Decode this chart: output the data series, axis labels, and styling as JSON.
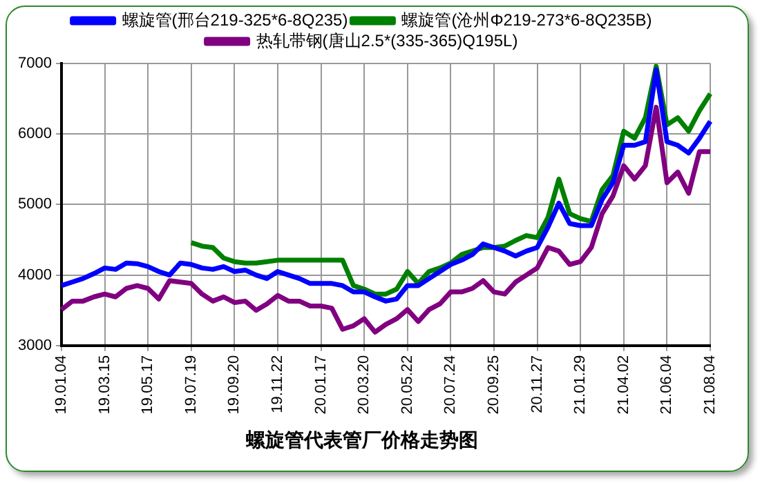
{
  "chart_data": {
    "type": "line",
    "title": "螺旋管代表管厂价格走势图",
    "categories": [
      "19.01.04",
      null,
      null,
      null,
      "19.03.15",
      null,
      null,
      null,
      "19.05.17",
      null,
      null,
      null,
      "19.07.19",
      null,
      null,
      null,
      "19.09.20",
      null,
      null,
      null,
      "19.11.22",
      null,
      null,
      null,
      "20.01.17",
      null,
      null,
      null,
      "20.03.20",
      null,
      null,
      null,
      "20.05.22",
      null,
      null,
      null,
      "20.07.24",
      null,
      null,
      null,
      "20.09.25",
      null,
      null,
      null,
      "20.11.27",
      null,
      null,
      null,
      "21.01.29",
      null,
      null,
      null,
      "21.04.02",
      null,
      null,
      null,
      "21.06.04",
      null,
      null,
      null,
      "21.08.04"
    ],
    "series": [
      {
        "name": "螺旋管(沧州Φ219-273*6-8Q235B)",
        "color": "#008000",
        "values": [
          null,
          null,
          null,
          null,
          null,
          null,
          null,
          null,
          null,
          null,
          null,
          null,
          4460,
          4410,
          4390,
          4240,
          4190,
          4170,
          4170,
          4190,
          4210,
          4210,
          4210,
          4210,
          4210,
          4210,
          4210,
          3850,
          3800,
          3730,
          3730,
          3800,
          4050,
          3880,
          4050,
          4100,
          4170,
          4290,
          4340,
          4390,
          4390,
          4410,
          4490,
          4560,
          4530,
          4820,
          5360,
          4870,
          4800,
          4760,
          5210,
          5410,
          6040,
          5940,
          6230,
          6960,
          6130,
          6230,
          6040,
          6330,
          6570
        ]
      },
      {
        "name": "螺旋管(邢台219-325*6-8Q235)",
        "color": "#0000ff",
        "values": [
          3850,
          3900,
          3950,
          4020,
          4100,
          4080,
          4170,
          4160,
          4120,
          4050,
          4000,
          4170,
          4150,
          4100,
          4080,
          4120,
          4050,
          4070,
          4000,
          3950,
          4050,
          4000,
          3950,
          3880,
          3880,
          3880,
          3850,
          3760,
          3760,
          3690,
          3630,
          3660,
          3850,
          3850,
          3950,
          4050,
          4150,
          4210,
          4290,
          4440,
          4390,
          4340,
          4270,
          4340,
          4390,
          4680,
          5020,
          4730,
          4700,
          4700,
          5070,
          5310,
          5840,
          5840,
          5890,
          6910,
          5890,
          5840,
          5730,
          5940,
          6180
        ]
      },
      {
        "name": "热轧带钢(唐山2.5*(335-365)Q195L)",
        "color": "#800080",
        "values": [
          3510,
          3630,
          3630,
          3690,
          3730,
          3690,
          3810,
          3850,
          3810,
          3660,
          3920,
          3900,
          3880,
          3730,
          3630,
          3690,
          3610,
          3630,
          3500,
          3590,
          3710,
          3630,
          3630,
          3560,
          3560,
          3530,
          3230,
          3280,
          3380,
          3190,
          3300,
          3380,
          3510,
          3340,
          3510,
          3590,
          3760,
          3760,
          3810,
          3920,
          3760,
          3730,
          3900,
          4000,
          4100,
          4390,
          4340,
          4150,
          4190,
          4390,
          4870,
          5120,
          5550,
          5360,
          5550,
          6380,
          5310,
          5460,
          5160,
          5750,
          5750
        ]
      }
    ],
    "ylim": [
      3000,
      7000
    ],
    "yticks": [
      3000,
      4000,
      5000,
      6000,
      7000
    ],
    "grid": true,
    "legend": "top",
    "marker": "none",
    "line_style": "solid"
  }
}
